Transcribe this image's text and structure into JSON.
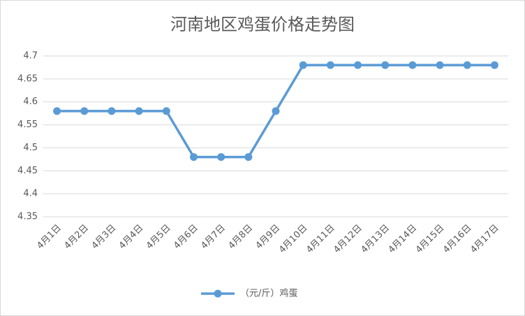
{
  "chart_data": {
    "type": "line",
    "title": "河南地区鸡蛋价格走势图",
    "categories": [
      "4月1日",
      "4月2日",
      "4月3日",
      "4月4日",
      "4月5日",
      "4月6日",
      "4月7日",
      "4月8日",
      "4月9日",
      "4月10日",
      "4月11日",
      "4月12日",
      "4月13日",
      "4月14日",
      "4月15日",
      "4月16日",
      "4月17日"
    ],
    "series": [
      {
        "name": "（元/斤）鸡蛋",
        "color": "#5b9bd5",
        "values": [
          4.58,
          4.58,
          4.58,
          4.58,
          4.58,
          4.48,
          4.48,
          4.48,
          4.58,
          4.68,
          4.68,
          4.68,
          4.68,
          4.68,
          4.68,
          4.68,
          4.68
        ]
      }
    ],
    "ylim": [
      4.35,
      4.7
    ],
    "yticks": [
      4.35,
      4.4,
      4.45,
      4.5,
      4.55,
      4.6,
      4.65,
      4.7
    ],
    "grid": true,
    "legend": "bottom"
  }
}
